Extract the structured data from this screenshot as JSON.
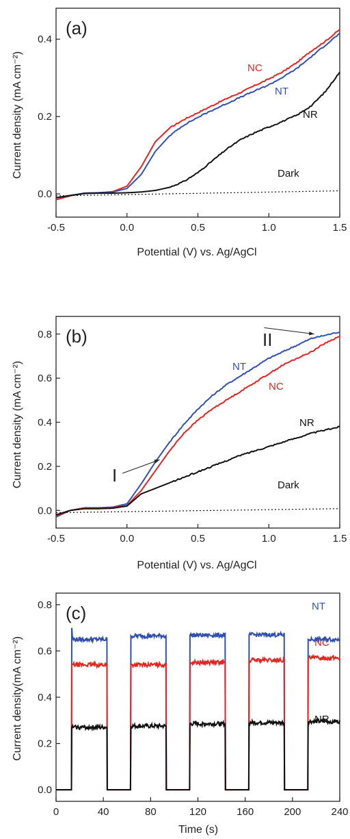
{
  "chart_data": [
    {
      "type": "line",
      "panel_label": "(a)",
      "xlabel": "Potential (V) vs. Ag/AgCl",
      "ylabel": "Current density (mA cm⁻²)",
      "xlim": [
        -0.5,
        1.5
      ],
      "ylim": [
        -0.06,
        0.48
      ],
      "xticks": [
        -0.5,
        0.0,
        0.5,
        1.0,
        1.5
      ],
      "xtick_labels": [
        "-0.5",
        "0.0",
        "0.5",
        "1.0",
        "1.5"
      ],
      "yticks": [
        0.0,
        0.2,
        0.4
      ],
      "ytick_labels": [
        "0.0",
        "0.2",
        "0.4"
      ],
      "grid": false,
      "series": [
        {
          "name": "NC",
          "color": "#e8221e",
          "x": [
            -0.5,
            -0.4,
            -0.3,
            -0.2,
            -0.1,
            0.0,
            0.1,
            0.2,
            0.3,
            0.4,
            0.5,
            0.6,
            0.7,
            0.8,
            0.9,
            1.0,
            1.1,
            1.2,
            1.3,
            1.4,
            1.5
          ],
          "y": [
            -0.015,
            -0.005,
            0.002,
            0.003,
            0.006,
            0.02,
            0.07,
            0.135,
            0.17,
            0.192,
            0.21,
            0.228,
            0.246,
            0.262,
            0.28,
            0.297,
            0.316,
            0.34,
            0.37,
            0.395,
            0.425
          ]
        },
        {
          "name": "NT",
          "color": "#2f4fb5",
          "x": [
            -0.5,
            -0.4,
            -0.3,
            -0.2,
            -0.1,
            0.0,
            0.1,
            0.2,
            0.3,
            0.4,
            0.5,
            0.6,
            0.7,
            0.8,
            0.9,
            1.0,
            1.1,
            1.2,
            1.3,
            1.4,
            1.5
          ],
          "y": [
            -0.01,
            -0.004,
            0.002,
            0.003,
            0.005,
            0.014,
            0.05,
            0.11,
            0.15,
            0.178,
            0.198,
            0.216,
            0.233,
            0.25,
            0.266,
            0.282,
            0.302,
            0.325,
            0.355,
            0.385,
            0.415
          ]
        },
        {
          "name": "NR",
          "color": "#111111",
          "x": [
            -0.5,
            -0.4,
            -0.3,
            -0.2,
            -0.1,
            0.0,
            0.1,
            0.2,
            0.3,
            0.4,
            0.5,
            0.6,
            0.7,
            0.8,
            0.9,
            1.0,
            1.1,
            1.2,
            1.3,
            1.4,
            1.5
          ],
          "y": [
            -0.01,
            -0.004,
            0.001,
            0.002,
            0.002,
            0.003,
            0.005,
            0.009,
            0.017,
            0.032,
            0.055,
            0.085,
            0.115,
            0.14,
            0.158,
            0.173,
            0.188,
            0.204,
            0.228,
            0.265,
            0.315
          ]
        },
        {
          "name": "Dark",
          "color": "#111111",
          "dashed": true,
          "x": [
            -0.5,
            1.5
          ],
          "y": [
            -0.005,
            0.008
          ]
        }
      ]
    },
    {
      "type": "line",
      "panel_label": "(b)",
      "xlabel": "Potential (V) vs. Ag/AgCl",
      "ylabel": "Current density (mA cm⁻²)",
      "xlim": [
        -0.5,
        1.5
      ],
      "ylim": [
        -0.08,
        0.88
      ],
      "xticks": [
        -0.5,
        0.0,
        0.5,
        1.0,
        1.5
      ],
      "xtick_labels": [
        "-0.5",
        "0.0",
        "0.5",
        "1.0",
        "1.5"
      ],
      "yticks": [
        0.0,
        0.2,
        0.4,
        0.6,
        0.8
      ],
      "ytick_labels": [
        "0.0",
        "0.2",
        "0.4",
        "0.6",
        "0.8"
      ],
      "grid": false,
      "annotations": [
        {
          "text": "I",
          "x": 0.23,
          "y": 0.23,
          "label_x": -0.07,
          "label_y": 0.15
        },
        {
          "text": "II",
          "x": 1.32,
          "y": 0.8,
          "label_x": 0.9,
          "label_y": 0.81
        }
      ],
      "series": [
        {
          "name": "NT",
          "color": "#2f4fb5",
          "x": [
            -0.5,
            -0.4,
            -0.3,
            -0.2,
            -0.1,
            0.0,
            0.1,
            0.2,
            0.3,
            0.4,
            0.5,
            0.6,
            0.7,
            0.8,
            0.9,
            1.0,
            1.1,
            1.2,
            1.3,
            1.4,
            1.5
          ],
          "y": [
            -0.03,
            0.0,
            0.012,
            0.012,
            0.015,
            0.03,
            0.12,
            0.22,
            0.31,
            0.39,
            0.46,
            0.52,
            0.57,
            0.61,
            0.65,
            0.69,
            0.72,
            0.75,
            0.78,
            0.795,
            0.81
          ]
        },
        {
          "name": "NC",
          "color": "#e8221e",
          "x": [
            -0.5,
            -0.4,
            -0.3,
            -0.2,
            -0.1,
            0.0,
            0.1,
            0.2,
            0.3,
            0.4,
            0.5,
            0.6,
            0.7,
            0.8,
            0.9,
            1.0,
            1.1,
            1.2,
            1.3,
            1.4,
            1.5
          ],
          "y": [
            -0.025,
            0.0,
            0.01,
            0.01,
            0.013,
            0.022,
            0.09,
            0.18,
            0.27,
            0.35,
            0.41,
            0.46,
            0.5,
            0.54,
            0.58,
            0.62,
            0.66,
            0.69,
            0.72,
            0.76,
            0.79
          ]
        },
        {
          "name": "NR",
          "color": "#111111",
          "x": [
            -0.5,
            -0.4,
            -0.3,
            -0.2,
            -0.1,
            0.0,
            0.1,
            0.2,
            0.3,
            0.4,
            0.5,
            0.6,
            0.7,
            0.8,
            0.9,
            1.0,
            1.1,
            1.2,
            1.3,
            1.4,
            1.5
          ],
          "y": [
            -0.02,
            0.0,
            0.008,
            0.008,
            0.01,
            0.02,
            0.075,
            0.1,
            0.125,
            0.15,
            0.175,
            0.2,
            0.225,
            0.25,
            0.27,
            0.29,
            0.31,
            0.33,
            0.35,
            0.365,
            0.38
          ]
        },
        {
          "name": "Dark",
          "color": "#111111",
          "dashed": true,
          "x": [
            -0.5,
            1.5
          ],
          "y": [
            -0.01,
            0.008
          ]
        }
      ]
    },
    {
      "type": "line",
      "panel_label": "(c)",
      "xlabel": "Time (s)",
      "ylabel": "Current  density(mA cm⁻²)",
      "xlim": [
        0,
        240
      ],
      "ylim": [
        -0.05,
        0.85
      ],
      "xticks": [
        0,
        40,
        80,
        120,
        160,
        200,
        240
      ],
      "xtick_labels": [
        "0",
        "40",
        "80",
        "120",
        "160",
        "200",
        "240"
      ],
      "yticks": [
        0.0,
        0.2,
        0.4,
        0.6,
        0.8
      ],
      "ytick_labels": [
        "0.0",
        "0.2",
        "0.4",
        "0.6",
        "0.8"
      ],
      "grid": false,
      "light_on_intervals": [
        [
          13,
          43
        ],
        [
          63,
          93
        ],
        [
          113,
          143
        ],
        [
          163,
          193
        ],
        [
          213,
          240
        ]
      ],
      "series": [
        {
          "name": "NT",
          "color": "#2f4fb5",
          "on_levels": [
            0.65,
            0.665,
            0.668,
            0.67,
            0.65
          ],
          "spike": 0.7
        },
        {
          "name": "NC",
          "color": "#e8221e",
          "on_levels": [
            0.54,
            0.54,
            0.55,
            0.56,
            0.57
          ]
        },
        {
          "name": "NR",
          "color": "#111111",
          "on_levels": [
            0.27,
            0.275,
            0.285,
            0.29,
            0.295
          ]
        }
      ]
    }
  ]
}
